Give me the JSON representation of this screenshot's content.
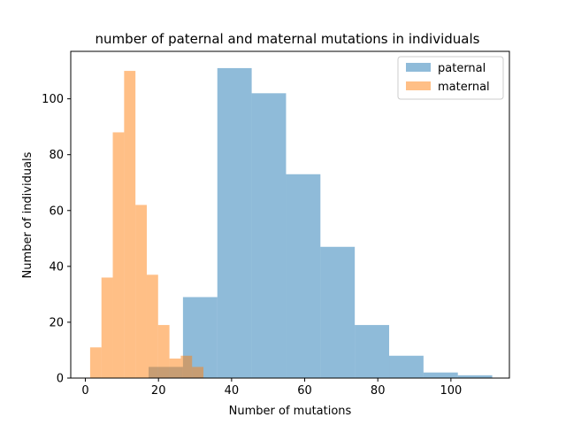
{
  "chart_data": {
    "type": "bar",
    "title": "number of paternal and maternal mutations in individuals",
    "xlabel": "Number of mutations",
    "ylabel": "Number of individuals",
    "xlim": [
      -4,
      116
    ],
    "ylim": [
      0,
      117
    ],
    "xticks": [
      0,
      20,
      40,
      60,
      80,
      100
    ],
    "yticks": [
      0,
      20,
      40,
      60,
      80,
      100
    ],
    "grid": false,
    "legend_position": "top-right",
    "series": [
      {
        "name": "paternal",
        "color": "#1f77b4",
        "opacity": 0.5,
        "bin_edges": [
          17.3,
          26.7,
          36.1,
          45.5,
          54.9,
          64.3,
          73.7,
          83.1,
          92.5,
          101.9,
          111.3
        ],
        "counts": [
          4,
          29,
          111,
          102,
          73,
          47,
          19,
          8,
          2,
          1
        ]
      },
      {
        "name": "maternal",
        "color": "#ff7f0e",
        "opacity": 0.5,
        "bin_edges": [
          1.3,
          4.4,
          7.5,
          10.6,
          13.7,
          16.8,
          19.9,
          23.0,
          26.1,
          29.2,
          32.3
        ],
        "counts": [
          11,
          36,
          88,
          110,
          62,
          37,
          19,
          7,
          8,
          4
        ]
      }
    ]
  }
}
